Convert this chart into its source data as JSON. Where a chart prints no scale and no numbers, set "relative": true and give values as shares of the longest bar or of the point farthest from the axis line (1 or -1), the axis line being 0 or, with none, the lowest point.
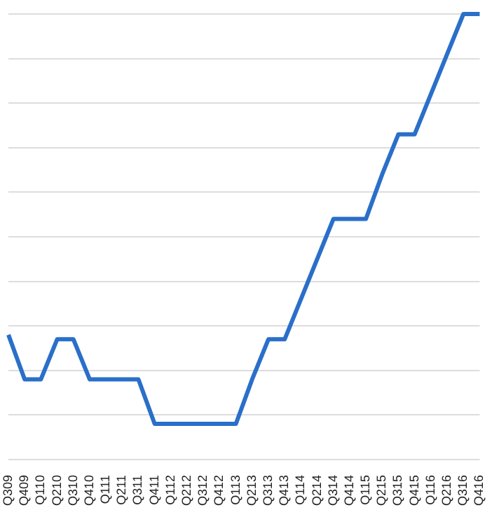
{
  "chart_data": {
    "type": "line",
    "relative": true,
    "grid": "y",
    "marker": "none",
    "line_style": "solid",
    "categories": [
      "Q309",
      "Q409",
      "Q110",
      "Q210",
      "Q310",
      "Q410",
      "Q111",
      "Q211",
      "Q311",
      "Q411",
      "Q112",
      "Q212",
      "Q312",
      "Q412",
      "Q113",
      "Q213",
      "Q313",
      "Q413",
      "Q114",
      "Q214",
      "Q314",
      "Q414",
      "Q115",
      "Q215",
      "Q315",
      "Q415",
      "Q116",
      "Q216",
      "Q316",
      "Q416"
    ],
    "series": [
      {
        "color": "#2a6fc9",
        "values": [
          0.28,
          0.18,
          0.18,
          0.27,
          0.27,
          0.18,
          0.18,
          0.18,
          0.18,
          0.08,
          0.08,
          0.08,
          0.08,
          0.08,
          0.08,
          0.18,
          0.27,
          0.27,
          0.36,
          0.45,
          0.54,
          0.54,
          0.54,
          0.64,
          0.73,
          0.73,
          0.82,
          0.91,
          1,
          1
        ]
      }
    ]
  }
}
